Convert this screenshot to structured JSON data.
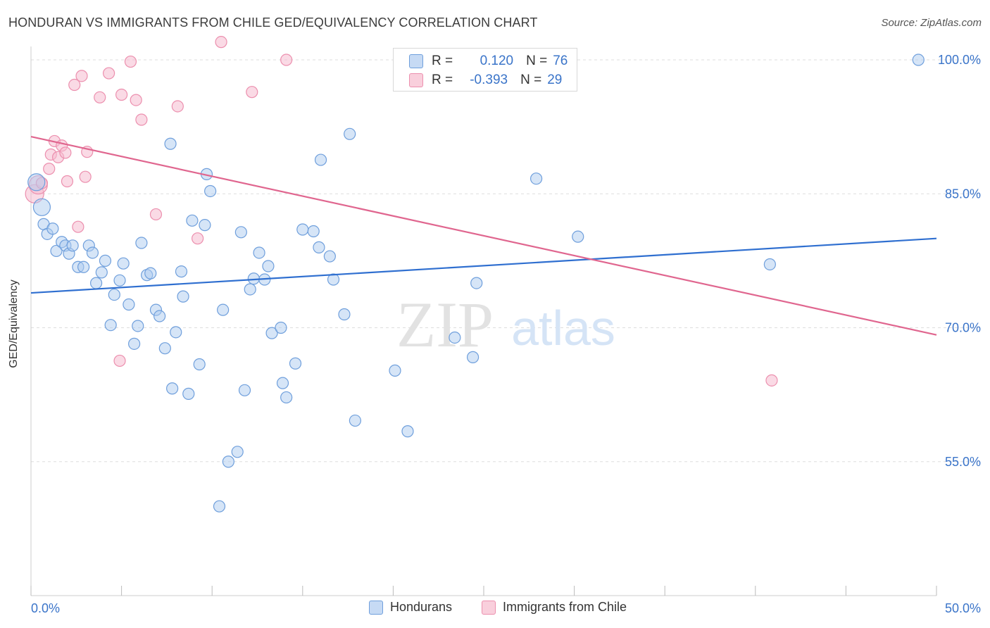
{
  "title": "HONDURAN VS IMMIGRANTS FROM CHILE GED/EQUIVALENCY CORRELATION CHART",
  "source": "Source: ZipAtlas.com",
  "watermark": {
    "zip": "ZIP",
    "atlas": "atlas"
  },
  "colors": {
    "blue_fill": "#aecbf0",
    "blue_stroke": "#6f9fdc",
    "blue_line": "#2f6fd0",
    "pink_fill": "#f6bcd0",
    "pink_stroke": "#ec8fae",
    "pink_line": "#e0668f",
    "axis_text": "#3a74c9",
    "grid": "#dddddd"
  },
  "stats": {
    "row1": {
      "r_label": "R =",
      "r_value": "0.120",
      "n_label": "N =",
      "n_value": "76"
    },
    "row2": {
      "r_label": "R =",
      "r_value": "-0.393",
      "n_label": "N =",
      "n_value": "29"
    }
  },
  "legend": {
    "series1": "Hondurans",
    "series2": "Immigrants from Chile"
  },
  "chart_data": {
    "type": "scatter",
    "title": "HONDURAN VS IMMIGRANTS FROM CHILE GED/EQUIVALENCY CORRELATION CHART",
    "xlabel": "",
    "ylabel": "GED/Equivalency",
    "xlim": [
      0,
      50
    ],
    "ylim": [
      40,
      101.5
    ],
    "x_ticks": [
      "0.0%",
      "50.0%"
    ],
    "y_ticks": [
      {
        "value": 100,
        "label": "100.0%"
      },
      {
        "value": 85,
        "label": "85.0%"
      },
      {
        "value": 70,
        "label": "70.0%"
      },
      {
        "value": 55,
        "label": "55.0%"
      }
    ],
    "grid": true,
    "legend_position": "bottom",
    "series": [
      {
        "name": "Hondurans",
        "r": 0.12,
        "n": 76,
        "trend": [
          [
            0,
            73.9
          ],
          [
            50,
            80.0
          ]
        ],
        "points": [
          [
            0.3,
            86.3
          ],
          [
            0.6,
            83.5
          ],
          [
            0.7,
            81.6
          ],
          [
            0.9,
            80.5
          ],
          [
            1.2,
            81.1
          ],
          [
            1.4,
            78.6
          ],
          [
            1.7,
            79.6
          ],
          [
            1.9,
            79.2
          ],
          [
            2.1,
            78.3
          ],
          [
            2.3,
            79.2
          ],
          [
            2.6,
            76.8
          ],
          [
            2.9,
            76.8
          ],
          [
            3.2,
            79.2
          ],
          [
            3.4,
            78.4
          ],
          [
            3.6,
            75.0
          ],
          [
            3.9,
            76.2
          ],
          [
            4.1,
            77.5
          ],
          [
            4.4,
            70.3
          ],
          [
            4.6,
            73.7
          ],
          [
            4.9,
            75.3
          ],
          [
            5.1,
            77.2
          ],
          [
            5.4,
            72.6
          ],
          [
            5.7,
            68.2
          ],
          [
            5.9,
            70.2
          ],
          [
            6.1,
            79.5
          ],
          [
            6.4,
            75.9
          ],
          [
            6.6,
            76.1
          ],
          [
            6.9,
            72.0
          ],
          [
            7.1,
            71.3
          ],
          [
            7.4,
            67.7
          ],
          [
            7.7,
            90.6
          ],
          [
            7.8,
            63.2
          ],
          [
            8.0,
            69.5
          ],
          [
            8.3,
            76.3
          ],
          [
            8.4,
            73.5
          ],
          [
            8.7,
            62.6
          ],
          [
            8.9,
            82.0
          ],
          [
            9.3,
            65.9
          ],
          [
            9.6,
            81.5
          ],
          [
            9.7,
            87.2
          ],
          [
            9.9,
            85.3
          ],
          [
            10.4,
            50.0
          ],
          [
            10.6,
            72.0
          ],
          [
            10.9,
            55.0
          ],
          [
            11.4,
            56.1
          ],
          [
            11.6,
            80.7
          ],
          [
            11.8,
            63.0
          ],
          [
            12.1,
            74.3
          ],
          [
            12.3,
            75.5
          ],
          [
            12.6,
            78.4
          ],
          [
            12.9,
            75.4
          ],
          [
            13.1,
            76.9
          ],
          [
            13.3,
            69.4
          ],
          [
            13.8,
            70.0
          ],
          [
            13.9,
            63.8
          ],
          [
            14.1,
            62.2
          ],
          [
            14.6,
            66.0
          ],
          [
            15.0,
            81.0
          ],
          [
            15.6,
            80.8
          ],
          [
            15.9,
            79.0
          ],
          [
            16.0,
            88.8
          ],
          [
            16.5,
            78.0
          ],
          [
            16.7,
            75.4
          ],
          [
            17.3,
            71.5
          ],
          [
            17.6,
            91.7
          ],
          [
            17.9,
            59.6
          ],
          [
            20.1,
            65.2
          ],
          [
            20.8,
            58.4
          ],
          [
            23.4,
            68.9
          ],
          [
            24.4,
            66.7
          ],
          [
            24.6,
            75.0
          ],
          [
            27.9,
            86.7
          ],
          [
            28.4,
            100.0
          ],
          [
            30.2,
            80.2
          ],
          [
            40.8,
            77.1
          ],
          [
            49.0,
            100.0
          ]
        ]
      },
      {
        "name": "Immigrants from Chile",
        "r": -0.393,
        "n": 29,
        "trend": [
          [
            0,
            91.4
          ],
          [
            50,
            69.2
          ]
        ],
        "points": [
          [
            0.2,
            85.0
          ],
          [
            0.4,
            86.0
          ],
          [
            0.6,
            86.2
          ],
          [
            1.0,
            87.8
          ],
          [
            1.1,
            89.4
          ],
          [
            1.3,
            90.9
          ],
          [
            1.5,
            89.1
          ],
          [
            1.7,
            90.4
          ],
          [
            1.9,
            89.6
          ],
          [
            2.0,
            86.4
          ],
          [
            2.4,
            97.2
          ],
          [
            2.6,
            81.3
          ],
          [
            2.8,
            98.2
          ],
          [
            3.0,
            86.9
          ],
          [
            3.1,
            89.7
          ],
          [
            3.8,
            95.8
          ],
          [
            4.3,
            98.5
          ],
          [
            4.9,
            66.3
          ],
          [
            5.0,
            96.1
          ],
          [
            5.5,
            99.8
          ],
          [
            5.8,
            95.5
          ],
          [
            6.1,
            93.3
          ],
          [
            6.9,
            82.7
          ],
          [
            8.1,
            94.8
          ],
          [
            9.2,
            80.0
          ],
          [
            12.2,
            96.4
          ],
          [
            14.1,
            100.0
          ],
          [
            40.9,
            64.1
          ],
          [
            10.5,
            102.0
          ]
        ]
      }
    ]
  }
}
